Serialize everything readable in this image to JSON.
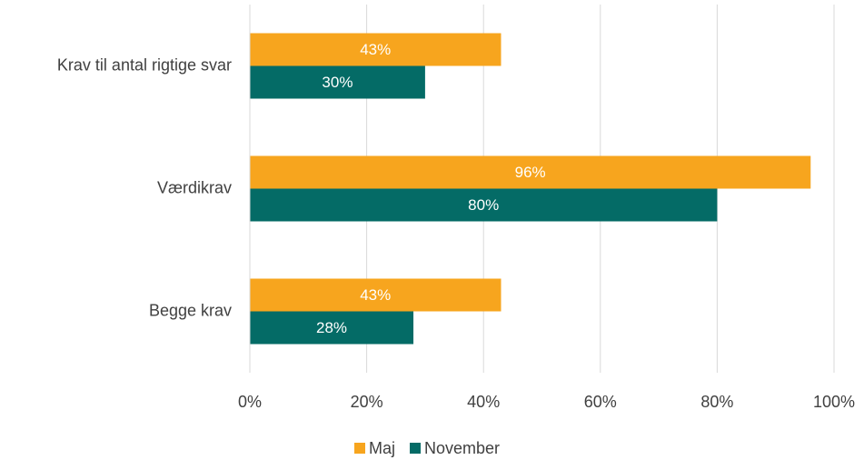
{
  "chart_data": {
    "type": "bar",
    "orientation": "horizontal",
    "categories": [
      "Krav til antal rigtige svar",
      "Værdikrav",
      "Begge krav"
    ],
    "series": [
      {
        "name": "Maj",
        "color": "#f7a51e",
        "values": [
          43,
          96,
          43
        ],
        "value_labels": [
          "43%",
          "96%",
          "43%"
        ]
      },
      {
        "name": "November",
        "color": "#046b66",
        "values": [
          30,
          80,
          28
        ],
        "value_labels": [
          "30%",
          "80%",
          "28%"
        ]
      }
    ],
    "xlim": [
      0,
      100
    ],
    "xticks": [
      {
        "value": 0,
        "label": "0%"
      },
      {
        "value": 20,
        "label": "20%"
      },
      {
        "value": 40,
        "label": "40%"
      },
      {
        "value": 60,
        "label": "60%"
      },
      {
        "value": 80,
        "label": "80%"
      },
      {
        "value": 100,
        "label": "100%"
      }
    ],
    "grid": true,
    "legend": "bottom"
  }
}
